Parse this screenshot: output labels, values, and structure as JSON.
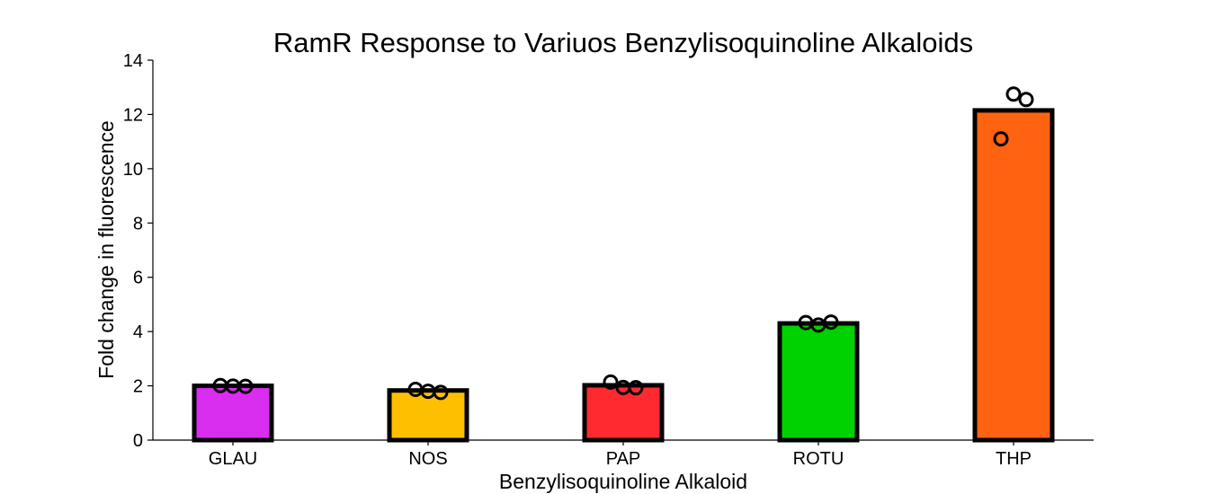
{
  "chart_data": {
    "type": "bar",
    "title": "RamR Response to Variuos Benzylisoquinoline Alkaloids",
    "xlabel": "Benzylisoquinoline Alkaloid",
    "ylabel": "Fold change in fluorescence",
    "categories": [
      "GLAU",
      "NOS",
      "PAP",
      "ROTU",
      "THP"
    ],
    "values": [
      2.0,
      1.83,
      2.02,
      4.3,
      12.15
    ],
    "colors": [
      "#d92ef0",
      "#fdbf00",
      "#fe2a2f",
      "#00d100",
      "#ff6210"
    ],
    "replicates": [
      [
        2.01,
        1.99,
        1.98
      ],
      [
        1.87,
        1.8,
        1.76
      ],
      [
        2.14,
        1.94,
        1.93
      ],
      [
        4.33,
        4.24,
        4.35
      ],
      [
        11.1,
        12.75,
        12.55
      ]
    ],
    "yticks": [
      0,
      2,
      4,
      6,
      8,
      10,
      12,
      14
    ],
    "ylim": [
      0,
      14
    ],
    "grid": false,
    "legend": "none"
  }
}
